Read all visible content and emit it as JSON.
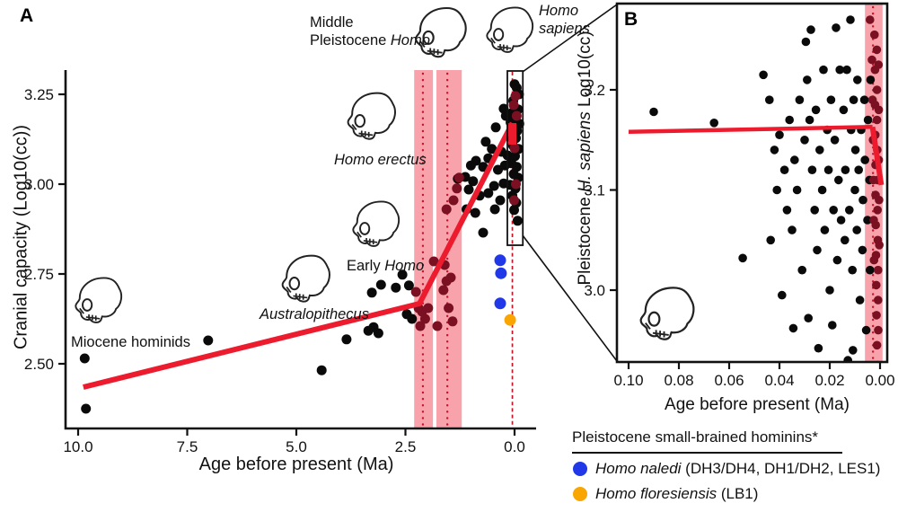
{
  "panel_a_letter": "A",
  "panel_b_letter": "B",
  "colors": {
    "red_line": "#EC1C2E",
    "pink_band": "#F8A2AB",
    "band_dotted_line": "#C81428",
    "dark_red_point": "#7A1022",
    "black_point": "#0A0A0A",
    "blue_point": "#2138E8",
    "orange_point": "#F9A602"
  },
  "annotations": {
    "miocene": "Miocene hominids",
    "australopithecus": "Australopithecus",
    "early_pre": "Early ",
    "early_homo": "Homo",
    "erectus": "Homo erectus",
    "mp_line1": "Middle",
    "mp_pre": "Pleistocene ",
    "mp_homo": "Homo",
    "sapiens_line1": "Homo",
    "sapiens_line2": "sapiens"
  },
  "legend": {
    "title": "Pleistocene small-brained hominins*",
    "items": [
      {
        "color": "#2138E8",
        "name": "Homo naledi",
        "detail": " (DH3/DH4, DH1/DH2, LES1)"
      },
      {
        "color": "#F9A602",
        "name": "Homo floresiensis",
        "detail": " (LB1)"
      }
    ]
  },
  "chart_data": {
    "type": "scatter",
    "panelA": {
      "xlabel": "Age before present (Ma)",
      "ylabel": "Cranial capacity (Log10(cc))",
      "xlim": [
        10.3,
        -0.5
      ],
      "ylim": [
        2.32,
        3.32
      ],
      "x_ticks": [
        10.0,
        7.5,
        5.0,
        2.5,
        0.0
      ],
      "x_tick_labels": [
        "10.0",
        "7.5",
        "5.0",
        "2.5",
        "0.0"
      ],
      "y_ticks": [
        3.25,
        3.0,
        2.75,
        2.5
      ],
      "y_tick_labels": [
        "3.25",
        "3.00",
        "2.75",
        "2.50"
      ],
      "bands": [
        {
          "from_ma": 2.3,
          "to_ma": 1.87,
          "center_ma": 2.1
        },
        {
          "from_ma": 1.79,
          "to_ma": 1.21,
          "center_ma": 1.54
        }
      ],
      "zero_dashed_line_ma": 0.05,
      "trend": [
        [
          9.88,
          2.435
        ],
        [
          2.18,
          2.6675
        ],
        [
          0.05,
          3.17
        ]
      ],
      "trend_drop": [
        [
          0.05,
          3.17
        ],
        [
          0.05,
          3.11
        ]
      ],
      "inset_rect": {
        "from_ma": 0.165,
        "to_ma": -0.19,
        "v_min": 2.83,
        "v_max": 3.315
      },
      "points_black": [
        [
          9.85,
          2.515
        ],
        [
          9.82,
          2.375
        ],
        [
          7.02,
          2.565
        ],
        [
          4.42,
          2.482
        ],
        [
          3.85,
          2.568
        ],
        [
          3.35,
          2.592
        ],
        [
          3.27,
          2.698
        ],
        [
          3.23,
          2.602
        ],
        [
          3.12,
          2.585
        ],
        [
          3.06,
          2.72
        ],
        [
          2.72,
          2.712
        ],
        [
          2.57,
          2.748
        ],
        [
          2.47,
          2.638
        ],
        [
          2.42,
          2.718
        ],
        [
          2.35,
          2.625
        ],
        [
          1.3,
          3.015
        ],
        [
          1.13,
          3.02
        ],
        [
          1.1,
          2.93
        ],
        [
          1.05,
          2.985
        ],
        [
          1.0,
          3.052
        ],
        [
          0.95,
          3.008
        ],
        [
          0.885,
          3.065
        ],
        [
          0.9,
          2.92
        ],
        [
          0.8,
          2.968
        ],
        [
          0.72,
          3.048
        ],
        [
          0.72,
          2.865
        ],
        [
          0.66,
          3.118
        ],
        [
          0.6,
          3.072
        ],
        [
          0.6,
          2.975
        ],
        [
          0.52,
          3.098
        ],
        [
          0.47,
          2.995
        ],
        [
          0.45,
          2.93
        ],
        [
          0.43,
          3.158
        ],
        [
          0.38,
          3.04
        ],
        [
          0.33,
          2.955
        ],
        [
          0.3,
          3.09
        ],
        [
          0.25,
          3.002
        ],
        [
          0.22,
          3.052
        ],
        [
          0.25,
          3.21
        ],
        [
          0.2,
          3.19
        ],
        [
          0.16,
          3.08
        ],
        [
          -0.1,
          3.25
        ],
        [
          -0.05,
          3.268
        ],
        [
          0.0,
          3.278
        ],
        [
          -0.08,
          3.208
        ],
        [
          0.03,
          3.232
        ],
        [
          -0.02,
          3.19
        ],
        [
          0.06,
          3.198
        ],
        [
          -0.11,
          3.168
        ],
        [
          0.01,
          3.165
        ],
        [
          -0.06,
          3.148
        ],
        [
          0.09,
          3.172
        ],
        [
          -0.03,
          3.128
        ],
        [
          0.04,
          3.108
        ],
        [
          -0.09,
          3.098
        ],
        [
          0.12,
          3.132
        ],
        [
          -0.01,
          3.078
        ],
        [
          0.07,
          3.058
        ],
        [
          -0.05,
          3.048
        ],
        [
          0.02,
          3.028
        ],
        [
          -0.08,
          3.018
        ],
        [
          0.1,
          2.998
        ],
        [
          -0.02,
          2.988
        ],
        [
          0.05,
          2.968
        ],
        [
          -0.04,
          2.948
        ],
        [
          0.01,
          2.928
        ],
        [
          -0.07,
          2.898
        ]
      ],
      "points_darkred": [
        [
          2.26,
          2.7
        ],
        [
          2.2,
          2.655
        ],
        [
          2.12,
          2.645
        ],
        [
          2.05,
          2.625
        ],
        [
          2.16,
          2.605
        ],
        [
          1.98,
          2.655
        ],
        [
          1.85,
          2.785
        ],
        [
          1.77,
          2.605
        ],
        [
          1.63,
          2.705
        ],
        [
          1.6,
          2.775
        ],
        [
          1.56,
          2.73
        ],
        [
          1.51,
          2.655
        ],
        [
          1.46,
          2.74
        ],
        [
          1.42,
          2.618
        ],
        [
          1.56,
          2.93
        ],
        [
          1.4,
          2.955
        ],
        [
          1.32,
          2.988
        ],
        [
          1.27,
          3.018
        ],
        [
          -0.02,
          3.245
        ],
        [
          0.02,
          3.22
        ],
        [
          -0.05,
          3.19
        ],
        [
          0.0,
          3.1
        ],
        [
          -0.03,
          3.0
        ],
        [
          0.01,
          2.955
        ]
      ],
      "points_blue": [
        [
          0.33,
          2.788
        ],
        [
          0.31,
          2.752
        ],
        [
          0.33,
          2.668
        ]
      ],
      "points_orange": [
        [
          0.1,
          2.622
        ]
      ]
    },
    "panelB": {
      "xlabel": "Age before present (Ma)",
      "ylabel_pre": "Pleistocene ",
      "ylabel_italic": "H. sapiens",
      "ylabel_post": " Log10(cc)",
      "xlim": [
        0.105,
        -0.003
      ],
      "ylim": [
        2.93,
        3.286
      ],
      "x_ticks": [
        0.1,
        0.08,
        0.06,
        0.04,
        0.02,
        0.0
      ],
      "x_tick_labels": [
        "0.10",
        "0.08",
        "0.06",
        "0.04",
        "0.02",
        "0.00"
      ],
      "y_ticks": [
        3.2,
        3.1,
        3.0
      ],
      "y_tick_labels": [
        "3.2",
        "3.1",
        "3.0"
      ],
      "band": {
        "from_ma": 0.006,
        "to_ma": -0.001,
        "center_ma": 0.0028
      },
      "trend": [
        [
          0.1,
          3.158
        ],
        [
          0.003,
          3.163
        ]
      ],
      "trend_drop": [
        [
          0.003,
          3.163
        ],
        [
          -0.0005,
          3.105
        ]
      ],
      "points_black": [
        [
          0.09,
          3.178
        ],
        [
          0.066,
          3.167
        ],
        [
          0.0546,
          3.032
        ],
        [
          0.0464,
          3.215
        ],
        [
          0.044,
          3.19
        ],
        [
          0.0435,
          3.05
        ],
        [
          0.042,
          3.14
        ],
        [
          0.041,
          3.1
        ],
        [
          0.04,
          3.155
        ],
        [
          0.039,
          2.995
        ],
        [
          0.038,
          3.12
        ],
        [
          0.037,
          3.08
        ],
        [
          0.036,
          3.17
        ],
        [
          0.035,
          3.06
        ],
        [
          0.0345,
          2.962
        ],
        [
          0.034,
          3.13
        ],
        [
          0.033,
          3.1
        ],
        [
          0.032,
          3.19
        ],
        [
          0.031,
          3.02
        ],
        [
          0.03,
          3.15
        ],
        [
          0.0295,
          3.248
        ],
        [
          0.029,
          3.21
        ],
        [
          0.0285,
          2.972
        ],
        [
          0.028,
          3.17
        ],
        [
          0.0275,
          3.26
        ],
        [
          0.027,
          3.12
        ],
        [
          0.026,
          3.08
        ],
        [
          0.0255,
          3.18
        ],
        [
          0.025,
          3.04
        ],
        [
          0.0245,
          2.942
        ],
        [
          0.024,
          3.14
        ],
        [
          0.023,
          3.1
        ],
        [
          0.0225,
          3.22
        ],
        [
          0.022,
          3.06
        ],
        [
          0.021,
          3.16
        ],
        [
          0.0205,
          3.12
        ],
        [
          0.02,
          3.0
        ],
        [
          0.0195,
          3.19
        ],
        [
          0.019,
          2.965
        ],
        [
          0.0185,
          3.08
        ],
        [
          0.018,
          3.15
        ],
        [
          0.0175,
          3.262
        ],
        [
          0.017,
          3.03
        ],
        [
          0.0165,
          3.11
        ],
        [
          0.016,
          3.22
        ],
        [
          0.0155,
          3.07
        ],
        [
          0.015,
          2.9
        ],
        [
          0.0145,
          3.18
        ],
        [
          0.014,
          3.05
        ],
        [
          0.0138,
          3.12
        ],
        [
          0.0132,
          3.22
        ],
        [
          0.0128,
          2.93
        ],
        [
          0.0122,
          3.08
        ],
        [
          0.0118,
          3.27
        ],
        [
          0.0115,
          3.16
        ],
        [
          0.011,
          3.02
        ],
        [
          0.0108,
          2.94
        ],
        [
          0.0105,
          3.19
        ],
        [
          0.01,
          3.1
        ],
        [
          0.0098,
          3.14
        ],
        [
          0.0092,
          3.06
        ],
        [
          0.009,
          3.21
        ],
        [
          0.0085,
          3.12
        ],
        [
          0.008,
          2.99
        ],
        [
          0.0075,
          3.16
        ],
        [
          0.007,
          3.04
        ],
        [
          0.0068,
          3.09
        ],
        [
          0.0062,
          3.19
        ],
        [
          0.006,
          3.13
        ],
        [
          0.0055,
          2.96
        ],
        [
          0.005,
          3.07
        ],
        [
          0.0048,
          3.17
        ],
        [
          0.0042,
          3.11
        ],
        [
          0.004,
          3.02
        ],
        [
          0.0038,
          3.21
        ]
      ],
      "points_darkred": [
        [
          0.004,
          3.27
        ],
        [
          0.0032,
          3.23
        ],
        [
          0.003,
          3.19
        ],
        [
          0.0028,
          3.15
        ],
        [
          0.0026,
          3.11
        ],
        [
          0.0025,
          3.07
        ],
        [
          0.0024,
          3.03
        ],
        [
          0.0022,
          3.255
        ],
        [
          0.002,
          3.22
        ],
        [
          0.002,
          3.185
        ],
        [
          0.0019,
          3.155
        ],
        [
          0.0018,
          3.125
        ],
        [
          0.0018,
          3.095
        ],
        [
          0.0017,
          3.065
        ],
        [
          0.0016,
          3.035
        ],
        [
          0.0015,
          3.005
        ],
        [
          0.0014,
          2.975
        ],
        [
          0.0013,
          3.24
        ],
        [
          0.0012,
          3.2
        ],
        [
          0.0012,
          3.17
        ],
        [
          0.0011,
          3.14
        ],
        [
          0.001,
          3.11
        ],
        [
          0.001,
          3.08
        ],
        [
          0.0009,
          3.05
        ],
        [
          0.0008,
          3.02
        ],
        [
          0.0008,
          2.99
        ],
        [
          0.0007,
          2.96
        ],
        [
          0.0006,
          3.225
        ],
        [
          0.0005,
          3.18
        ],
        [
          0.0005,
          3.13
        ],
        [
          0.0004,
          3.09
        ],
        [
          0.0003,
          3.045
        ],
        [
          0.0012,
          2.945
        ],
        [
          0.0009,
          2.925
        ]
      ]
    }
  }
}
